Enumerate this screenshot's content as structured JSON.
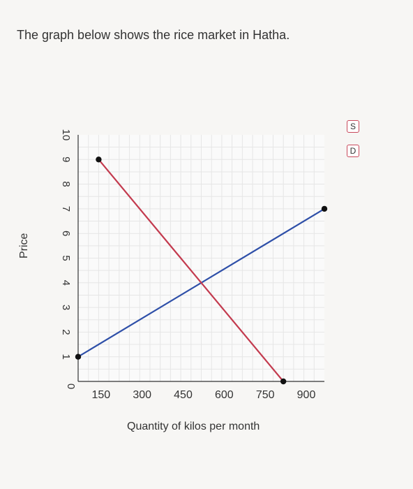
{
  "question": {
    "text": "The graph below shows the rice market in Hatha."
  },
  "legend": {
    "supply": "S",
    "demand": "D"
  },
  "chart_data": {
    "type": "line",
    "xlabel": "Quantity of kilos per month",
    "ylabel": "Price",
    "xlim": [
      0,
      900
    ],
    "ylim": [
      0,
      10
    ],
    "x_ticks": [
      150,
      300,
      450,
      600,
      750,
      900
    ],
    "y_ticks": [
      1,
      2,
      3,
      4,
      5,
      6,
      7,
      8,
      9,
      10
    ],
    "origin_label": "0",
    "grid": true,
    "series": [
      {
        "name": "S",
        "color": "#2e4fa8",
        "points": [
          [
            0,
            1
          ],
          [
            900,
            7
          ]
        ]
      },
      {
        "name": "D",
        "color": "#c33a4e",
        "points": [
          [
            75,
            9
          ],
          [
            750,
            0
          ]
        ]
      }
    ]
  }
}
